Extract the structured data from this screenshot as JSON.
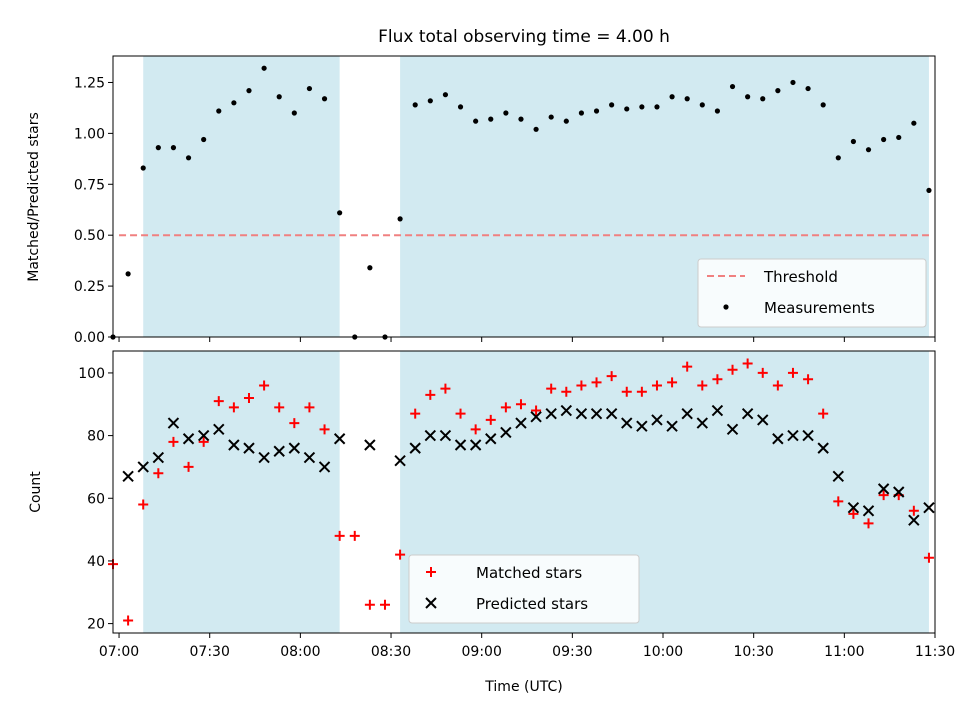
{
  "figure": {
    "title": "Flux total observing time = 4.00 h",
    "xlabel": "Time (UTC)"
  },
  "colors": {
    "shade": "#add8e6",
    "threshold": "#f08080",
    "measurements": "#000000",
    "matched": "#ff0000",
    "predicted": "#000000"
  },
  "chart_data": [
    {
      "type": "scatter",
      "ylabel": "Matched/Predicted stars",
      "xlim": [
        "06:58",
        "11:30"
      ],
      "ylim": [
        0,
        1.38
      ],
      "y_ticks": [
        0.0,
        0.25,
        0.5,
        0.75,
        1.0,
        1.25
      ],
      "y_tick_labels": [
        "0.00",
        "0.25",
        "0.50",
        "0.75",
        "1.00",
        "1.25"
      ],
      "x_ticks": [
        "07:00",
        "07:30",
        "08:00",
        "08:30",
        "09:00",
        "09:30",
        "10:00",
        "10:30",
        "11:00",
        "11:30"
      ],
      "shaded_intervals": [
        [
          "07:08",
          "08:13"
        ],
        [
          "08:33",
          "11:28"
        ]
      ],
      "legend": {
        "placement": "lower-right",
        "entries": [
          "Threshold",
          "Measurements"
        ]
      },
      "series": [
        {
          "name": "Threshold",
          "style": "dashed-line",
          "x": [
            "07:00",
            "11:28"
          ],
          "y": [
            0.5,
            0.5
          ]
        },
        {
          "name": "Measurements",
          "style": "dot",
          "x": [
            "06:58",
            "07:03",
            "07:08",
            "07:13",
            "07:18",
            "07:23",
            "07:28",
            "07:33",
            "07:38",
            "07:43",
            "07:48",
            "07:53",
            "07:58",
            "08:03",
            "08:08",
            "08:13",
            "08:18",
            "08:23",
            "08:28",
            "08:33",
            "08:38",
            "08:43",
            "08:48",
            "08:53",
            "08:58",
            "09:03",
            "09:08",
            "09:13",
            "09:18",
            "09:23",
            "09:28",
            "09:33",
            "09:38",
            "09:43",
            "09:48",
            "09:53",
            "09:58",
            "10:03",
            "10:08",
            "10:13",
            "10:18",
            "10:23",
            "10:28",
            "10:33",
            "10:38",
            "10:43",
            "10:48",
            "10:53",
            "10:58",
            "11:03",
            "11:08",
            "11:13",
            "11:18",
            "11:23",
            "11:28"
          ],
          "y": [
            0.0,
            0.31,
            0.83,
            0.93,
            0.93,
            0.88,
            0.97,
            1.11,
            1.15,
            1.21,
            1.32,
            1.18,
            1.1,
            1.22,
            1.17,
            0.61,
            0.0,
            0.34,
            0.0,
            0.58,
            1.14,
            1.16,
            1.19,
            1.13,
            1.06,
            1.07,
            1.1,
            1.07,
            1.02,
            1.08,
            1.06,
            1.1,
            1.11,
            1.14,
            1.12,
            1.13,
            1.13,
            1.18,
            1.17,
            1.14,
            1.11,
            1.23,
            1.18,
            1.17,
            1.21,
            1.25,
            1.22,
            1.14,
            0.88,
            0.96,
            0.92,
            0.97,
            0.98,
            1.05,
            0.72
          ]
        }
      ]
    },
    {
      "type": "scatter",
      "ylabel": "Count",
      "xlim": [
        "06:58",
        "11:30"
      ],
      "ylim": [
        17,
        107
      ],
      "y_ticks": [
        20,
        40,
        60,
        80,
        100
      ],
      "y_tick_labels": [
        "20",
        "40",
        "60",
        "80",
        "100"
      ],
      "x_ticks": [
        "07:00",
        "07:30",
        "08:00",
        "08:30",
        "09:00",
        "09:30",
        "10:00",
        "10:30",
        "11:00",
        "11:30"
      ],
      "x_tick_labels": [
        "07:00",
        "07:30",
        "08:00",
        "08:30",
        "09:00",
        "09:30",
        "10:00",
        "10:30",
        "11:00",
        "11:30"
      ],
      "shaded_intervals": [
        [
          "07:08",
          "08:13"
        ],
        [
          "08:33",
          "11:28"
        ]
      ],
      "legend": {
        "placement": "bottom-center",
        "entries": [
          "Matched stars",
          "Predicted stars"
        ]
      },
      "series": [
        {
          "name": "Matched stars",
          "marker": "+",
          "x": [
            "06:58",
            "07:03",
            "07:08",
            "07:13",
            "07:18",
            "07:23",
            "07:28",
            "07:33",
            "07:38",
            "07:43",
            "07:48",
            "07:53",
            "07:58",
            "08:03",
            "08:08",
            "08:13",
            "08:18",
            "08:23",
            "08:28",
            "08:33",
            "08:38",
            "08:43",
            "08:48",
            "08:53",
            "08:58",
            "09:03",
            "09:08",
            "09:13",
            "09:18",
            "09:23",
            "09:28",
            "09:33",
            "09:38",
            "09:43",
            "09:48",
            "09:53",
            "09:58",
            "10:03",
            "10:08",
            "10:13",
            "10:18",
            "10:23",
            "10:28",
            "10:33",
            "10:38",
            "10:43",
            "10:48",
            "10:53",
            "10:58",
            "11:03",
            "11:08",
            "11:13",
            "11:18",
            "11:23",
            "11:28"
          ],
          "y": [
            39,
            21,
            58,
            68,
            78,
            70,
            78,
            91,
            89,
            92,
            96,
            89,
            84,
            89,
            82,
            48,
            48,
            26,
            26,
            42,
            87,
            93,
            95,
            87,
            82,
            85,
            89,
            90,
            88,
            95,
            94,
            96,
            97,
            99,
            94,
            94,
            96,
            97,
            102,
            96,
            98,
            101,
            103,
            100,
            96,
            100,
            98,
            87,
            59,
            55,
            52,
            61,
            61,
            56,
            41
          ]
        },
        {
          "name": "Predicted stars",
          "marker": "x",
          "x": [
            "07:03",
            "07:08",
            "07:13",
            "07:18",
            "07:23",
            "07:28",
            "07:33",
            "07:38",
            "07:43",
            "07:48",
            "07:53",
            "07:58",
            "08:03",
            "08:08",
            "08:13",
            "08:23",
            "08:33",
            "08:38",
            "08:43",
            "08:48",
            "08:53",
            "08:58",
            "09:03",
            "09:08",
            "09:13",
            "09:18",
            "09:23",
            "09:28",
            "09:33",
            "09:38",
            "09:43",
            "09:48",
            "09:53",
            "09:58",
            "10:03",
            "10:08",
            "10:13",
            "10:18",
            "10:23",
            "10:28",
            "10:33",
            "10:38",
            "10:43",
            "10:48",
            "10:53",
            "10:58",
            "11:03",
            "11:08",
            "11:13",
            "11:18",
            "11:23",
            "11:28"
          ],
          "y": [
            67,
            70,
            73,
            84,
            79,
            80,
            82,
            77,
            76,
            73,
            75,
            76,
            73,
            70,
            79,
            77,
            72,
            76,
            80,
            80,
            77,
            77,
            79,
            81,
            84,
            86,
            87,
            88,
            87,
            87,
            87,
            84,
            83,
            85,
            83,
            87,
            84,
            88,
            82,
            87,
            85,
            79,
            80,
            80,
            76,
            67,
            57,
            56,
            63,
            62,
            53,
            57
          ]
        }
      ]
    }
  ]
}
